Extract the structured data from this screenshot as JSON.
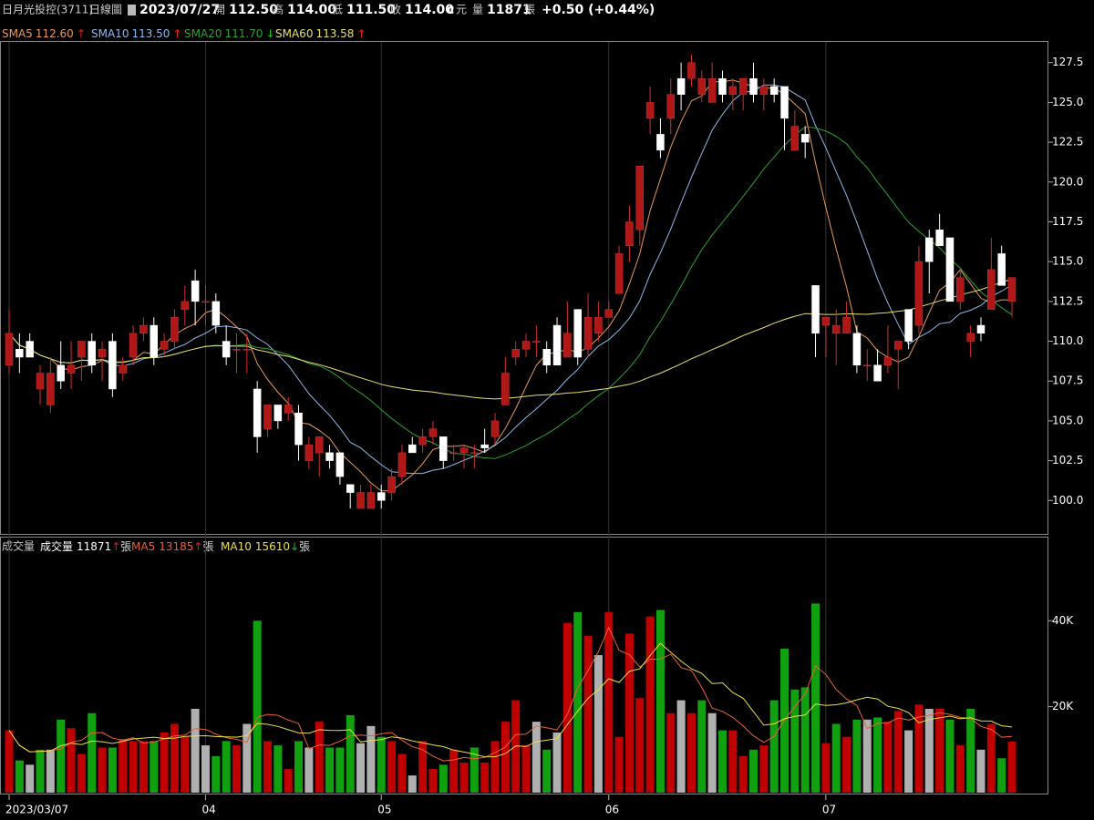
{
  "header": {
    "stock": "日月光投控(3711)",
    "period": "日線圖",
    "date": "2023/07/27",
    "open_label": "開",
    "open": "112.50",
    "high_label": "高",
    "high": "114.00",
    "low_label": "低",
    "low": "111.50",
    "close_label": "收",
    "close": "114.00",
    "close_flag": "c",
    "unit": "元",
    "volume_label": "量",
    "volume": "11871",
    "volume_unit": "張",
    "change": "+0.50 (+0.44%)"
  },
  "price_legend": [
    {
      "name": "SMA5",
      "value": "112.60",
      "arrow": "↑",
      "color": "#e8995a",
      "period": 5
    },
    {
      "name": "SMA10",
      "value": "113.50",
      "arrow": "↑",
      "color": "#8fb8e8",
      "period": 10
    },
    {
      "name": "SMA20",
      "value": "111.70",
      "arrow": "↓",
      "color": "#2fa02f",
      "period": 20
    },
    {
      "name": "SMA60",
      "value": "113.58",
      "arrow": "↑",
      "color": "#e8e070",
      "period": 60
    }
  ],
  "volume_legend": {
    "title": "成交量",
    "items": [
      {
        "name": "成交量",
        "value": "11871",
        "arrow": "↑",
        "unit": "張",
        "color": "#ffffff"
      },
      {
        "name": "MA5",
        "value": "13185",
        "arrow": "↑",
        "unit": "張",
        "color": "#e8603a",
        "period": 5
      },
      {
        "name": "MA10",
        "value": "15610",
        "arrow": "↓",
        "unit": "張",
        "color": "#e8e040",
        "period": 10
      }
    ]
  },
  "chart_data": {
    "type": "candlestick",
    "categories": [
      "2023/03/07",
      null,
      null,
      null,
      null,
      null,
      null,
      null,
      null,
      null,
      null,
      null,
      null,
      null,
      null,
      null,
      null,
      null,
      null,
      "04",
      null,
      null,
      null,
      null,
      null,
      null,
      null,
      null,
      null,
      null,
      null,
      null,
      null,
      null,
      null,
      null,
      "05",
      null,
      null,
      null,
      null,
      null,
      null,
      null,
      null,
      null,
      null,
      null,
      null,
      null,
      null,
      null,
      null,
      null,
      null,
      null,
      null,
      null,
      "06",
      null,
      null,
      null,
      null,
      null,
      null,
      null,
      null,
      null,
      null,
      null,
      null,
      null,
      null,
      null,
      null,
      null,
      null,
      null,
      null,
      "07",
      null,
      null,
      null,
      null,
      null,
      null,
      null,
      null,
      null,
      null,
      null,
      null,
      null,
      null,
      null,
      null,
      null,
      null
    ],
    "ohlc": [
      [
        108.5,
        112,
        108,
        110.5
      ],
      [
        109.5,
        110.5,
        108,
        109
      ],
      [
        110,
        110.5,
        109,
        109
      ],
      [
        107,
        108.5,
        106,
        108
      ],
      [
        106,
        109,
        105.5,
        108
      ],
      [
        108.5,
        110,
        107,
        107.5
      ],
      [
        108,
        110,
        107,
        108.5
      ],
      [
        109,
        110,
        107.5,
        110
      ],
      [
        110,
        110.5,
        108,
        108.5
      ],
      [
        109,
        110,
        107.5,
        109.5
      ],
      [
        110,
        110.5,
        106.5,
        107
      ],
      [
        108,
        109,
        107.5,
        108.5
      ],
      [
        109,
        111,
        108.5,
        110.5
      ],
      [
        110.5,
        111.5,
        110,
        111
      ],
      [
        111,
        111.5,
        108.5,
        109
      ],
      [
        109.5,
        110.5,
        109,
        110
      ],
      [
        110,
        112,
        109.5,
        111.5
      ],
      [
        112,
        113.5,
        111,
        112.5
      ],
      [
        113.8,
        114.5,
        111,
        112.5
      ],
      [
        112.5,
        113.5,
        111,
        112.5
      ],
      [
        112.5,
        113,
        110.5,
        111
      ],
      [
        110,
        111,
        108.5,
        109
      ],
      [
        109.5,
        110.5,
        108,
        109.5
      ],
      [
        109.5,
        110.5,
        108,
        109.5
      ],
      [
        107,
        107.5,
        103,
        104
      ],
      [
        104.5,
        106,
        104,
        106
      ],
      [
        106,
        106,
        104.5,
        105
      ],
      [
        105.5,
        106.5,
        105,
        106
      ],
      [
        105.5,
        106,
        102.5,
        103.5
      ],
      [
        102.5,
        104,
        102,
        103.5
      ],
      [
        103,
        104,
        101.5,
        104
      ],
      [
        103,
        103.5,
        102,
        102.5
      ],
      [
        103,
        103,
        101,
        101.5
      ],
      [
        101,
        101,
        99.5,
        100.5
      ],
      [
        99.5,
        101,
        99.5,
        100.5
      ],
      [
        99.5,
        101,
        99.5,
        100.5
      ],
      [
        100.5,
        101,
        99.5,
        100
      ],
      [
        100.5,
        102,
        100,
        101.5
      ],
      [
        101.5,
        103.5,
        101,
        103
      ],
      [
        103.5,
        104,
        103,
        103
      ],
      [
        103.5,
        104.5,
        103,
        104
      ],
      [
        104,
        105,
        103.5,
        104.5
      ],
      [
        104,
        104,
        102,
        102.5
      ],
      [
        103,
        103.5,
        102.5,
        103
      ],
      [
        103,
        103.5,
        102,
        103.3
      ],
      [
        103,
        103.5,
        102,
        103
      ],
      [
        103.5,
        104.5,
        103,
        103.3
      ],
      [
        104,
        105.5,
        103.5,
        105
      ],
      [
        106,
        109,
        106,
        108
      ],
      [
        109,
        110,
        108.5,
        109.5
      ],
      [
        109.5,
        110.5,
        109,
        110
      ],
      [
        110,
        111,
        109,
        110
      ],
      [
        109.5,
        110,
        108,
        108.5
      ],
      [
        111,
        111.5,
        108.5,
        108.5
      ],
      [
        109,
        112.5,
        109,
        110.5
      ],
      [
        112,
        112,
        108.5,
        109
      ],
      [
        109.5,
        113,
        109,
        111.5
      ],
      [
        110.5,
        112.5,
        110,
        111.5
      ],
      [
        111.5,
        112.5,
        111.5,
        112
      ],
      [
        113,
        116,
        113,
        115.5
      ],
      [
        116,
        118.5,
        115,
        117.5
      ],
      [
        117,
        121,
        116,
        121
      ],
      [
        124,
        126,
        123,
        125
      ],
      [
        123,
        124,
        121.5,
        122
      ],
      [
        124,
        126.5,
        123,
        125.5
      ],
      [
        126.5,
        127.5,
        124.5,
        125.5
      ],
      [
        126.5,
        128,
        126,
        127.5
      ],
      [
        125.5,
        127,
        125,
        126.5
      ],
      [
        125,
        127.5,
        125,
        126.5
      ],
      [
        126.5,
        127,
        125,
        125.5
      ],
      [
        125.5,
        126.5,
        124.5,
        126
      ],
      [
        125.5,
        126.5,
        124.5,
        126.5
      ],
      [
        126.5,
        127.5,
        125,
        125.5
      ],
      [
        125.5,
        126.5,
        124.5,
        126
      ],
      [
        126,
        126.5,
        125,
        125.5
      ],
      [
        126,
        126,
        122,
        124
      ],
      [
        122,
        124.5,
        122,
        123.5
      ],
      [
        123,
        123.5,
        121.5,
        122.5
      ],
      [
        113.5,
        113.5,
        109,
        110.5
      ],
      [
        111,
        111.5,
        109,
        111.5
      ],
      [
        110.5,
        112,
        108.5,
        111
      ],
      [
        110.5,
        112.5,
        110.5,
        111.5
      ],
      [
        110.5,
        111,
        108,
        108.5
      ],
      [
        108.5,
        109.5,
        107.5,
        108.5
      ],
      [
        108.5,
        109.5,
        107.5,
        107.5
      ],
      [
        108.5,
        111,
        108,
        109
      ],
      [
        109.5,
        110,
        107,
        110
      ],
      [
        112,
        112,
        109.5,
        110
      ],
      [
        111,
        116,
        110.5,
        115
      ],
      [
        116.5,
        117,
        113,
        115
      ],
      [
        117,
        118,
        116,
        116
      ],
      [
        116.5,
        116.5,
        112.5,
        112.5
      ],
      [
        112.5,
        114.5,
        112,
        114
      ],
      [
        110,
        111,
        109,
        110.5
      ],
      [
        111,
        111.5,
        110,
        110.5
      ],
      [
        112,
        116.5,
        112,
        114.5
      ],
      [
        115.5,
        116,
        113.5,
        113.5
      ],
      [
        112.5,
        114,
        111.5,
        114
      ]
    ],
    "volume": [
      14500,
      7500,
      6500,
      10000,
      10000,
      17000,
      15000,
      9000,
      18500,
      10500,
      10500,
      12500,
      12000,
      12000,
      12000,
      14000,
      16000,
      13000,
      19500,
      11000,
      8500,
      12000,
      11000,
      16000,
      40000,
      12000,
      11000,
      5500,
      12000,
      10500,
      16500,
      10500,
      10500,
      18000,
      11500,
      15500,
      13000,
      12000,
      9000,
      4000,
      12000,
      5500,
      6500,
      10000,
      7000,
      10500,
      7000,
      12000,
      16500,
      21500,
      11000,
      16500,
      10000,
      14000,
      39500,
      42000,
      36500,
      32000,
      42000,
      13000,
      37000,
      22000,
      41000,
      42500,
      18500,
      21500,
      18500,
      21500,
      18500,
      14500,
      14500,
      8500,
      10000,
      11000,
      21500,
      33500,
      24000,
      24500,
      44000,
      11500,
      16000,
      13000,
      17000,
      17000,
      17500,
      16500,
      19000,
      14500,
      20500,
      19500,
      19500,
      17000,
      11000,
      19500,
      10000,
      16000,
      8000,
      11871
    ],
    "up_color": "#b01818",
    "down_color": "#ffffff",
    "vol_up_color": "#c00000",
    "vol_down_color": "#10a010",
    "vol_flat_color": "#b0b0b0",
    "ylim": [
      97.9,
      128.8
    ],
    "yticks": [
      {
        "value": 100,
        "label": "100.0"
      },
      {
        "value": 102.5,
        "label": "102.5"
      },
      {
        "value": 105,
        "label": "105.0"
      },
      {
        "value": 107.5,
        "label": "107.5"
      },
      {
        "value": 110,
        "label": "110.0"
      },
      {
        "value": 112.5,
        "label": "112.5"
      },
      {
        "value": 115,
        "label": "115.0"
      },
      {
        "value": 117.5,
        "label": "117.5"
      },
      {
        "value": 120,
        "label": "120.0"
      },
      {
        "value": 122.5,
        "label": "122.5"
      },
      {
        "value": 125,
        "label": "125.0"
      },
      {
        "value": 127.5,
        "label": "127.5"
      }
    ],
    "y2lim": [
      0,
      59350
    ],
    "y2ticks": [
      {
        "value": 20000,
        "label": "20K"
      },
      {
        "value": 40000,
        "label": "40K"
      }
    ]
  }
}
